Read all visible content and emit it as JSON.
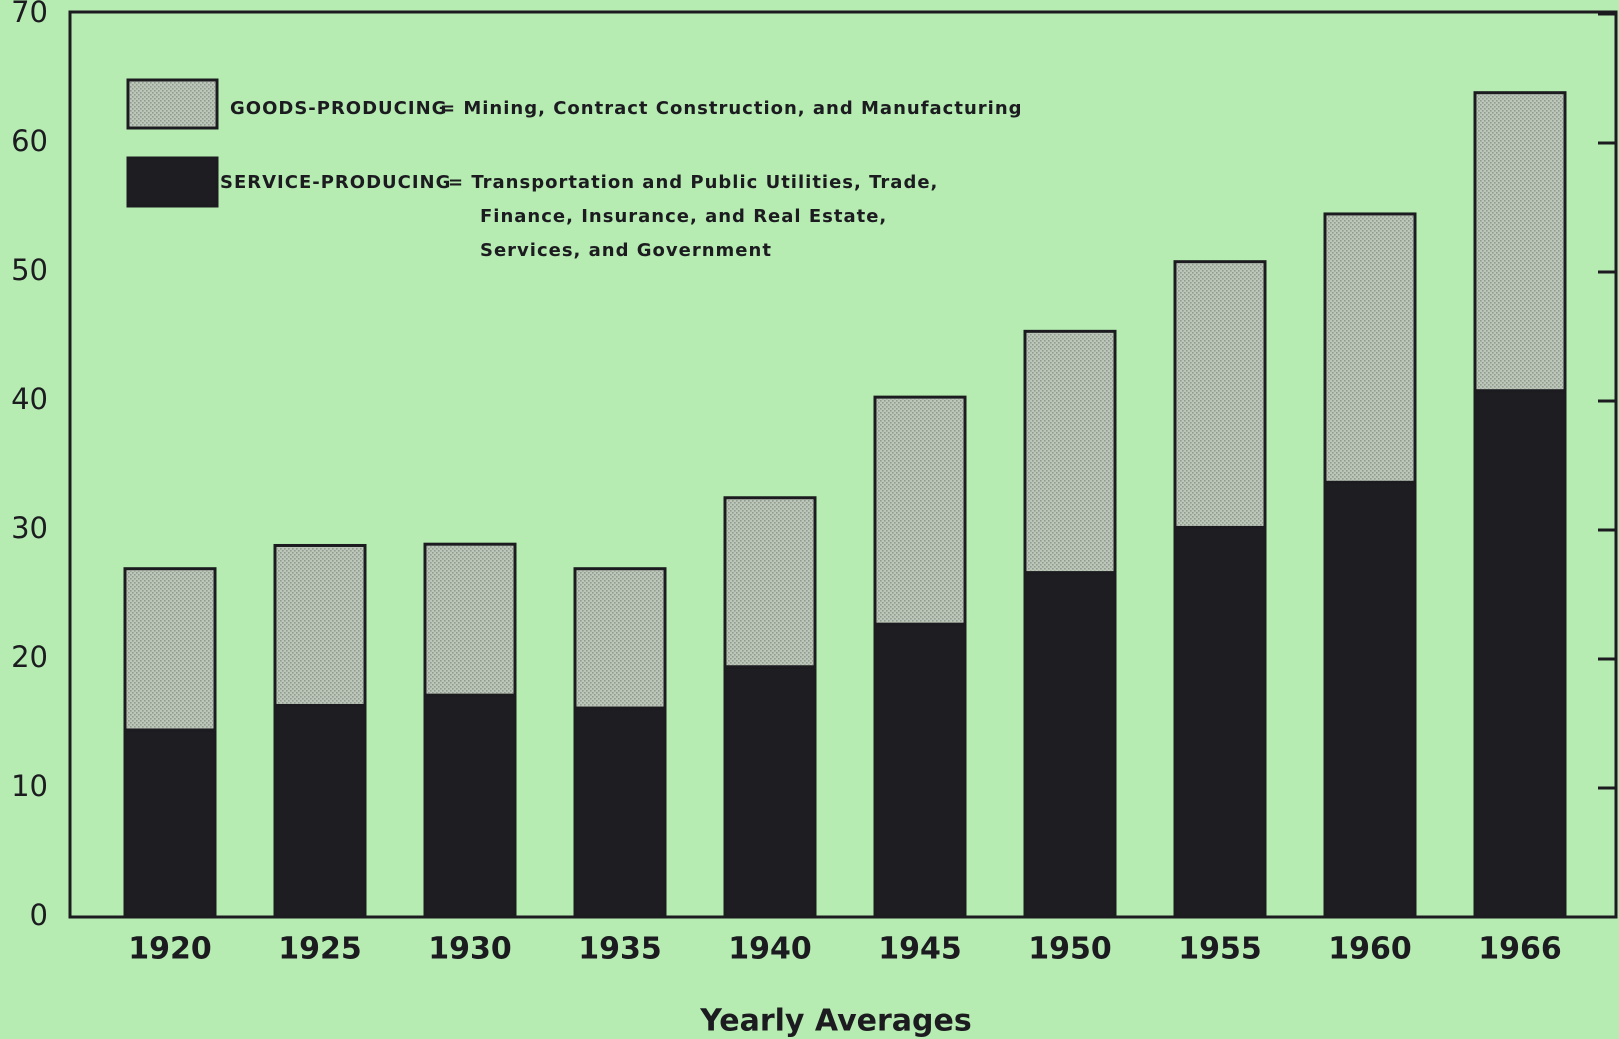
{
  "chart_data": {
    "type": "stacked_bar",
    "categories": [
      "1920",
      "1925",
      "1930",
      "1935",
      "1940",
      "1945",
      "1950",
      "1955",
      "1960",
      "1966"
    ],
    "series": [
      {
        "name": "SERVICE-PRODUCING",
        "color": "#1e1e22",
        "values": [
          14.5,
          16.4,
          17.2,
          16.2,
          19.4,
          22.7,
          26.7,
          30.2,
          33.7,
          40.8
        ]
      },
      {
        "name": "GOODS-PRODUCING",
        "color": "#bcc7b9",
        "values": [
          12.5,
          12.4,
          11.7,
          10.8,
          13.1,
          17.6,
          18.7,
          20.6,
          20.8,
          23.1
        ]
      }
    ],
    "legend_descriptions": [
      [
        "= Transportation and Public Utilities, Trade,",
        "Finance, Insurance, and Real Estate,",
        "Services, and Government"
      ],
      [
        "= Mining, Contract Construction, and Manufacturing"
      ]
    ],
    "x_label": "Yearly Averages",
    "ylim": [
      0,
      70
    ],
    "yticks": [
      0,
      10,
      20,
      30,
      40,
      50,
      60,
      70
    ]
  }
}
